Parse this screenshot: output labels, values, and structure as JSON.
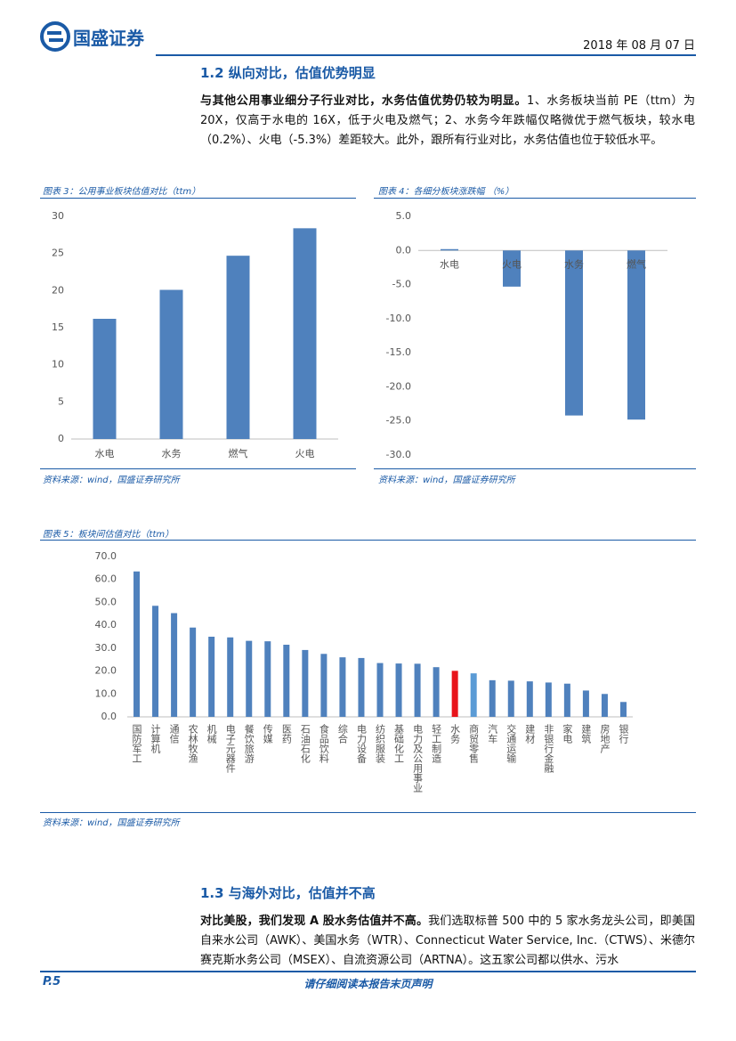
{
  "header": {
    "logo": "国盛证券",
    "date": "2018 年 08 月 07 日"
  },
  "sections": [
    {
      "title": "1.2 纵向对比，估值优势明显",
      "lead": "与其他公用事业细分子行业对比，水务估值优势仍较为明显。",
      "body": "1、水务板块当前 PE（ttm）为 20X，仅高于水电的 16X，低于火电及燃气；2、水务今年跌幅仅略微优于燃气板块，较水电（0.2%）、火电（-5.3%）差距较大。此外，跟所有行业对比，水务估值也位于较低水平。"
    },
    {
      "title": "1.3 与海外对比，估值并不高",
      "lead": "对比美股，我们发现 A 股水务估值并不高。",
      "body": "我们选取标普 500 中的 5 家水务龙头公司，即美国自来水公司（AWK）、美国水务（WTR）、Connecticut Water Service, Inc.（CTWS）、米德尔赛克斯水务公司（MSEX）、自流资源公司（ARTNA）。这五家公司都以供水、污水"
    }
  ],
  "chart_data": [
    {
      "type": "bar",
      "title": "图表 3：公用事业板块估值对比（ttm）",
      "source": "资料来源：wind，国盛证券研究所",
      "categories": [
        "水电",
        "水务",
        "燃气",
        "火电"
      ],
      "values": [
        16.2,
        20.1,
        24.7,
        28.4
      ],
      "color": "#4f81bd",
      "ylim": [
        0,
        30
      ],
      "yticks": [
        0,
        5,
        10,
        15,
        20,
        25,
        30
      ]
    },
    {
      "type": "bar",
      "title": "图表 4：各细分板块涨跌幅 （%）",
      "source": "资料来源：wind，国盛证券研究所",
      "categories": [
        "水电",
        "火电",
        "水务",
        "燃气"
      ],
      "values": [
        0.2,
        -5.3,
        -24.2,
        -24.8
      ],
      "color": "#4f81bd",
      "ylim": [
        -30,
        5
      ],
      "yticks": [
        {
          "value": 5,
          "label": "5.0"
        },
        {
          "value": 0,
          "label": "0.0"
        },
        {
          "value": -5,
          "label": "-5.0"
        },
        {
          "value": -10,
          "label": "-10.0"
        },
        {
          "value": -15,
          "label": "-15.0"
        },
        {
          "value": -20,
          "label": "-20.0"
        },
        {
          "value": -25,
          "label": "-25.0"
        },
        {
          "value": -30,
          "label": "-30.0"
        }
      ]
    },
    {
      "type": "bar",
      "title": "图表 5：板块间估值对比（ttm）",
      "source": "资料来源：wind，国盛证券研究所",
      "categories": [
        "国防军工",
        "计算机",
        "通信",
        "农林牧渔",
        "机械",
        "电子元器件",
        "餐饮旅游",
        "传媒",
        "医药",
        "石油石化",
        "食品饮料",
        "综合",
        "电力设备",
        "纺织服装",
        "基础化工",
        "电力及公用事业",
        "轻工制造",
        "水务",
        "商贸零售",
        "汽车",
        "交通运输",
        "建材",
        "非银行金融",
        "家电",
        "建筑",
        "房地产",
        "银行"
      ],
      "values": [
        63.5,
        48.5,
        45.3,
        39.0,
        35.0,
        34.7,
        33.2,
        33.0,
        31.5,
        29.2,
        27.5,
        26.0,
        25.7,
        23.5,
        23.3,
        23.2,
        21.7,
        20.1,
        19.0,
        16.0,
        15.8,
        15.5,
        15.0,
        14.5,
        11.5,
        10.0,
        6.5
      ],
      "colors": [
        "#4f81bd",
        "#4f81bd",
        "#4f81bd",
        "#4f81bd",
        "#4f81bd",
        "#4f81bd",
        "#4f81bd",
        "#4f81bd",
        "#4f81bd",
        "#4f81bd",
        "#4f81bd",
        "#4f81bd",
        "#4f81bd",
        "#4f81bd",
        "#4f81bd",
        "#4f81bd",
        "#4f81bd",
        "#e8141b",
        "#5b9bd5",
        "#4f81bd",
        "#4f81bd",
        "#4f81bd",
        "#4f81bd",
        "#4f81bd",
        "#4f81bd",
        "#4f81bd",
        "#4f81bd"
      ],
      "ylim": [
        0,
        70
      ],
      "yticks": [
        {
          "value": 0,
          "label": "0.0"
        },
        {
          "value": 10,
          "label": "10.0"
        },
        {
          "value": 20,
          "label": "20.0"
        },
        {
          "value": 30,
          "label": "30.0"
        },
        {
          "value": 40,
          "label": "40.0"
        },
        {
          "value": 50,
          "label": "50.0"
        },
        {
          "value": 60,
          "label": "60.0"
        },
        {
          "value": 70,
          "label": "70.0"
        }
      ]
    }
  ],
  "footer": {
    "page": "P.5",
    "notice": "请仔细阅读本报告末页声明"
  }
}
